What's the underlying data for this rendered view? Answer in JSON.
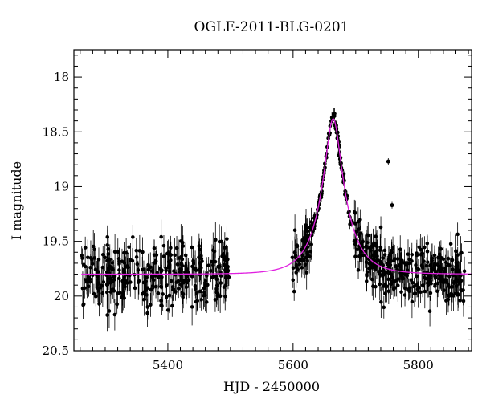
{
  "chart_data": {
    "type": "scatter",
    "title": "OGLE-2011-BLG-0201",
    "xlabel": "HJD - 2450000",
    "ylabel": "I magnitude",
    "xlim": [
      5250,
      5885
    ],
    "ylim": [
      20.5,
      17.75
    ],
    "y_inverted": true,
    "x_ticks": [
      5400,
      5600,
      5800
    ],
    "y_ticks": [
      18,
      18.5,
      19,
      19.5,
      20,
      20.5
    ],
    "x_tick_labels": [
      "5400",
      "5600",
      "5800"
    ],
    "y_tick_labels": [
      "18",
      "18.5",
      "19",
      "19.5",
      "20",
      "20.5"
    ],
    "grid": false,
    "series": [
      {
        "type": "points_with_errorbars",
        "color": "#000000",
        "baseline_mag": 19.8,
        "segments": [
          {
            "x_start": 5262,
            "x_end": 5500,
            "count": 330,
            "scatter": 0.14,
            "err": 0.13
          },
          {
            "x_start": 5598,
            "x_end": 5875,
            "count": 470,
            "scatter": 0.13,
            "err": 0.12
          }
        ],
        "outliers": [
          {
            "x": 5752,
            "y": 18.77
          },
          {
            "x": 5758,
            "y": 19.17
          }
        ]
      },
      {
        "type": "line",
        "color": "#e020e0",
        "model": "microlensing",
        "t0": 5664,
        "peak_mag": 18.38,
        "baseline_mag": 19.8,
        "tE": 40,
        "x_range": [
          5262,
          5885
        ]
      }
    ]
  }
}
